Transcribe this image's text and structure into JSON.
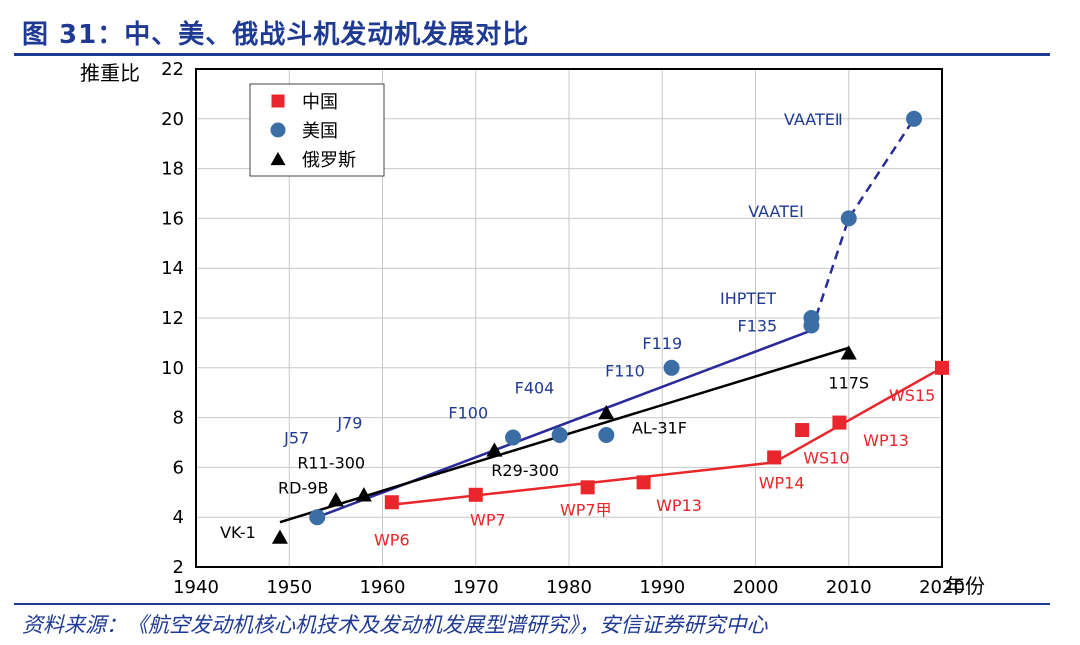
{
  "figure": {
    "title": "图 31：中、美、俄战斗机发动机发展对比",
    "source": "资料来源：《航空发动机核心机技术及发动机发展型谱研究》，安信证券研究中心"
  },
  "colors": {
    "china": "#e8262b",
    "usa": "#3a6ea5",
    "russia": "#000000",
    "usa_line": "#2a2a9a",
    "accent": "#1f3a93"
  },
  "chart_data": {
    "type": "scatter",
    "title": "",
    "xlabel": "年份",
    "ylabel": "推重比",
    "xlim": [
      1940,
      2020
    ],
    "ylim": [
      2,
      22
    ],
    "x_ticks": [
      1940,
      1950,
      1960,
      1970,
      1980,
      1990,
      2000,
      2010,
      2020
    ],
    "y_ticks": [
      2,
      4,
      6,
      8,
      10,
      12,
      14,
      16,
      18,
      20,
      22
    ],
    "grid": true,
    "legend_position": "top-left",
    "series": [
      {
        "name": "中国",
        "marker": "square",
        "color": "#e8262b",
        "points": [
          {
            "x": 1961,
            "y": 4.6
          },
          {
            "x": 1970,
            "y": 4.9
          },
          {
            "x": 1982,
            "y": 5.2
          },
          {
            "x": 1988,
            "y": 5.4
          },
          {
            "x": 2002,
            "y": 6.4
          },
          {
            "x": 2005,
            "y": 7.5
          },
          {
            "x": 2009,
            "y": 7.8
          },
          {
            "x": 2020,
            "y": 10.0
          }
        ],
        "trend": [
          {
            "x": 1961,
            "y": 4.5
          },
          {
            "x": 2002,
            "y": 6.2
          },
          {
            "x": 2020,
            "y": 10.0
          }
        ]
      },
      {
        "name": "美国",
        "marker": "circle",
        "color": "#3a6ea5",
        "points": [
          {
            "x": 1953,
            "y": 4.0
          },
          {
            "x": 1974,
            "y": 7.2
          },
          {
            "x": 1979,
            "y": 7.3
          },
          {
            "x": 1984,
            "y": 7.3
          },
          {
            "x": 1991,
            "y": 10.0
          },
          {
            "x": 2006,
            "y": 11.7
          },
          {
            "x": 2006,
            "y": 12.0
          },
          {
            "x": 2010,
            "y": 16.0
          },
          {
            "x": 2017,
            "y": 20.0
          }
        ],
        "trend": [
          {
            "x": 1953,
            "y": 4.0
          },
          {
            "x": 2006,
            "y": 11.5
          }
        ],
        "trend_projected": [
          {
            "x": 2006,
            "y": 11.5
          },
          {
            "x": 2010,
            "y": 16.0
          },
          {
            "x": 2017,
            "y": 20.0
          }
        ]
      },
      {
        "name": "俄罗斯",
        "marker": "triangle",
        "color": "#000000",
        "points": [
          {
            "x": 1949,
            "y": 3.2
          },
          {
            "x": 1955,
            "y": 4.7
          },
          {
            "x": 1958,
            "y": 4.9
          },
          {
            "x": 1972,
            "y": 6.7
          },
          {
            "x": 1984,
            "y": 8.2
          },
          {
            "x": 2010,
            "y": 10.6
          }
        ],
        "trend": [
          {
            "x": 1949,
            "y": 3.8
          },
          {
            "x": 2010,
            "y": 10.8
          }
        ]
      }
    ],
    "annotations": [
      {
        "text": "VK-1",
        "x": 1944.5,
        "y": 3.4,
        "color": "#000000"
      },
      {
        "text": "RD-9B",
        "x": 1951.5,
        "y": 5.2,
        "color": "#000000"
      },
      {
        "text": "R11-300",
        "x": 1954.5,
        "y": 6.2,
        "color": "#000000"
      },
      {
        "text": "J57",
        "x": 1950.8,
        "y": 7.2,
        "color": "#1f3a93"
      },
      {
        "text": "J79",
        "x": 1956.5,
        "y": 7.8,
        "color": "#1f3a93"
      },
      {
        "text": "F100",
        "x": 1969.2,
        "y": 8.2,
        "color": "#1f3a93"
      },
      {
        "text": "F404",
        "x": 1976.3,
        "y": 9.2,
        "color": "#1f3a93"
      },
      {
        "text": "F110",
        "x": 1986.0,
        "y": 9.9,
        "color": "#1f3a93"
      },
      {
        "text": "F119",
        "x": 1990.0,
        "y": 11.0,
        "color": "#1f3a93"
      },
      {
        "text": "F135",
        "x": 2000.2,
        "y": 11.7,
        "color": "#1f3a93"
      },
      {
        "text": "IHPTET",
        "x": 1999.2,
        "y": 12.8,
        "color": "#1f3a93"
      },
      {
        "text": "VAATEⅠ",
        "x": 2002.2,
        "y": 16.3,
        "color": "#1f3a93"
      },
      {
        "text": "VAATEⅡ",
        "x": 2006.2,
        "y": 20.0,
        "color": "#1f3a93"
      },
      {
        "text": "AL-31F",
        "x": 1989.7,
        "y": 7.6,
        "color": "#000000"
      },
      {
        "text": "R29-300",
        "x": 1975.3,
        "y": 5.9,
        "color": "#000000"
      },
      {
        "text": "117S",
        "x": 2010.0,
        "y": 9.4,
        "color": "#000000"
      },
      {
        "text": "WP6",
        "x": 1961.0,
        "y": 3.1,
        "color": "#e8262b"
      },
      {
        "text": "WP7",
        "x": 1971.3,
        "y": 3.9,
        "color": "#e8262b"
      },
      {
        "text": "WP7甲",
        "x": 1981.8,
        "y": 4.3,
        "color": "#e8262b"
      },
      {
        "text": "WP13",
        "x": 1991.8,
        "y": 4.5,
        "color": "#e8262b"
      },
      {
        "text": "WP14",
        "x": 2002.8,
        "y": 5.4,
        "color": "#e8262b"
      },
      {
        "text": "WS10",
        "x": 2007.6,
        "y": 6.4,
        "color": "#e8262b"
      },
      {
        "text": "WP13",
        "x": 2014.0,
        "y": 7.1,
        "color": "#e8262b"
      },
      {
        "text": "WS15",
        "x": 2016.8,
        "y": 8.9,
        "color": "#e8262b"
      }
    ]
  }
}
